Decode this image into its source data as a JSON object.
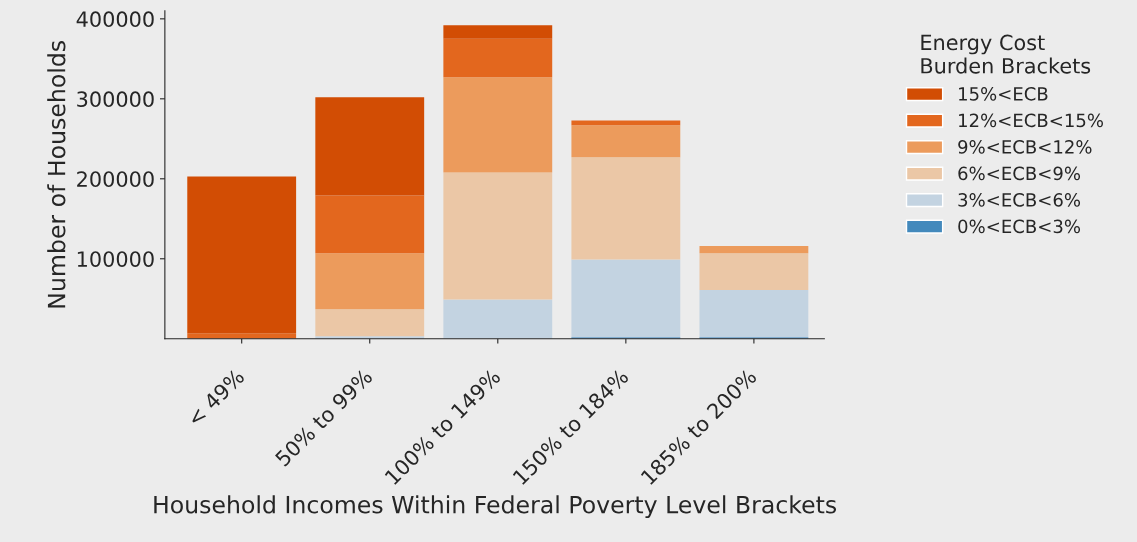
{
  "chart_data": {
    "type": "bar",
    "stacked": true,
    "xlabel": "Household Incomes Within Federal Poverty Level Brackets",
    "ylabel": "Number of Households",
    "legend_title": "Energy Cost\nBurden Brackets",
    "legend": "right",
    "grid": false,
    "categories": [
      "< 49%",
      "50% to 99%",
      "100% to 149%",
      "150% to 184%",
      "185% to 200%"
    ],
    "ylim": [
      0,
      410000
    ],
    "yticks": [
      100000,
      200000,
      300000,
      400000
    ],
    "series": [
      {
        "name": "0%<ECB<3%",
        "color": "#4389bc",
        "values": [
          0,
          0,
          0,
          2000,
          2000
        ]
      },
      {
        "name": "3%<ECB<6%",
        "color": "#c3d3e1",
        "values": [
          0,
          3000,
          49000,
          97000,
          59000
        ]
      },
      {
        "name": "6%<ECB<9%",
        "color": "#ebc7a6",
        "values": [
          0,
          34000,
          159000,
          128000,
          46000
        ]
      },
      {
        "name": "9%<ECB<12%",
        "color": "#ec9b5c",
        "values": [
          0,
          70000,
          119000,
          40000,
          9000
        ]
      },
      {
        "name": "12%<ECB<15%",
        "color": "#e3671e",
        "values": [
          7000,
          72000,
          48000,
          6000,
          0
        ]
      },
      {
        "name": "15%<ECB",
        "color": "#d24d04",
        "values": [
          196000,
          123000,
          17000,
          0,
          0
        ]
      }
    ]
  }
}
